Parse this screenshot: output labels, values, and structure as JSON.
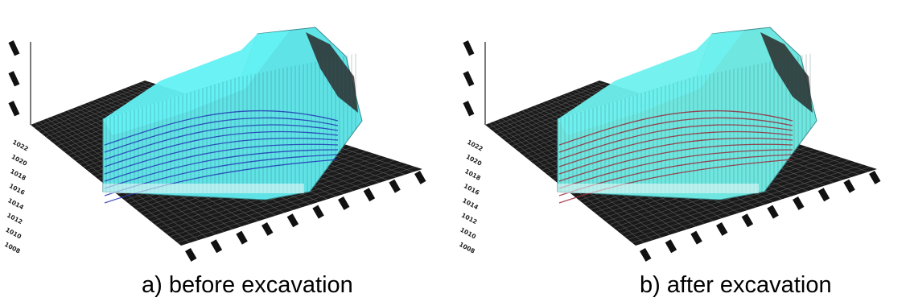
{
  "figures": [
    {
      "caption": "a) before excavation",
      "surface_color": "#5fe3e6",
      "top_color": "#63f1f4",
      "contour_color": "#1d2fb0",
      "base_color": "#1a1a1a",
      "y_tick_labels": [
        "1008",
        "1010",
        "1012",
        "1014",
        "1016",
        "1018",
        "1020",
        "1022"
      ]
    },
    {
      "caption": "b) after excavation",
      "surface_color": "#6fe6df",
      "top_color": "#6ef1ee",
      "contour_color": "#9a2030",
      "base_color": "#1a1a1a",
      "y_tick_labels": [
        "1008",
        "1010",
        "1012",
        "1014",
        "1016",
        "1018",
        "1020",
        "1022"
      ]
    }
  ]
}
